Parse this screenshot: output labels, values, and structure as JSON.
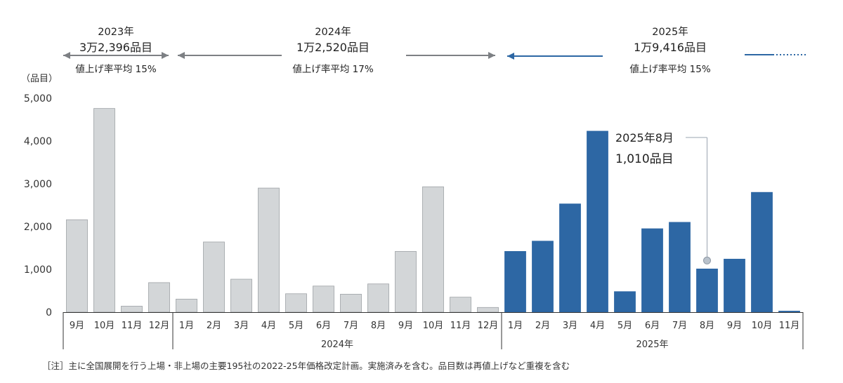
{
  "chart_data": {
    "type": "bar",
    "ylabel": "（品目）",
    "ylim": [
      0,
      5000
    ],
    "yticks": [
      "0",
      "1,000",
      "2,000",
      "3,000",
      "4,000",
      "5,000"
    ],
    "categories": [
      "9月",
      "10月",
      "11月",
      "12月",
      "1月",
      "2月",
      "3月",
      "4月",
      "5月",
      "6月",
      "7月",
      "8月",
      "9月",
      "10月",
      "11月",
      "12月",
      "1月",
      "2月",
      "3月",
      "4月",
      "5月",
      "6月",
      "7月",
      "8月",
      "9月",
      "10月",
      "11月"
    ],
    "values": [
      2160,
      4760,
      140,
      690,
      305,
      1640,
      770,
      2900,
      430,
      610,
      420,
      660,
      1420,
      2930,
      350,
      110,
      1420,
      1660,
      2530,
      4230,
      480,
      1950,
      2100,
      1010,
      1240,
      2800,
      25
    ],
    "year_groups": [
      {
        "label": "",
        "count": 4
      },
      {
        "label": "2024年",
        "count": 12
      },
      {
        "label": "2025年",
        "count": 11
      }
    ],
    "colors": {
      "past": "#d3d6d8",
      "current": "#2d67a4",
      "past_stroke": "#9ea2a6"
    },
    "current_from_index": 16,
    "callout": {
      "index": 23,
      "line1": "2025年8月",
      "line2": "1,010品目"
    },
    "summaries": [
      {
        "year": "2023年",
        "count": "3万2,396品目",
        "rate": "値上げ率平均 15%"
      },
      {
        "year": "2024年",
        "count": "1万2,520品目",
        "rate": "値上げ率平均  17%"
      },
      {
        "year": "2025年",
        "count": "1万9,416品目",
        "rate": "値上げ率平均  15%"
      }
    ]
  },
  "note": "［注］主に全国展開を行う上場・非上場の主要195社の2022-25年価格改定計画。実施済みを含む。品目数は再値上げなど重複を含む"
}
